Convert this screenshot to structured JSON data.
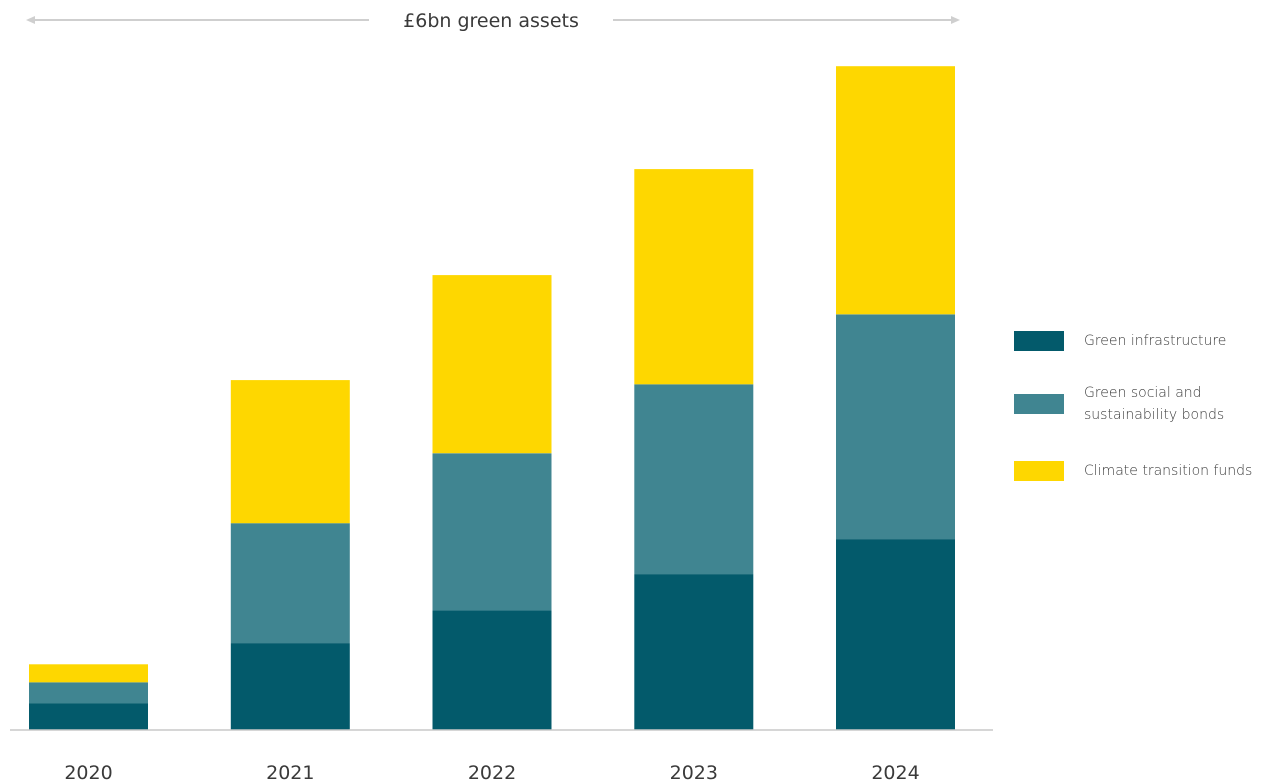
{
  "chart_data": {
    "type": "bar",
    "stacked": true,
    "title": "",
    "xlabel": "",
    "ylabel": "",
    "categories": [
      "2020",
      "2021",
      "2022",
      "2023",
      "2024"
    ],
    "series": [
      {
        "name": "Green infrastructure",
        "color": "#035a6b",
        "values": [
          0.25,
          0.82,
          1.13,
          1.47,
          1.8
        ]
      },
      {
        "name": "Green social and sustainability bonds",
        "color": "#408591",
        "values": [
          0.2,
          1.13,
          1.48,
          1.79,
          2.12
        ]
      },
      {
        "name": "Climate transition funds",
        "color": "#fed700",
        "values": [
          0.17,
          1.35,
          1.68,
          2.03,
          2.34
        ]
      }
    ],
    "ylim": [
      0,
      6.3
    ],
    "grid": false,
    "legend_position": "right",
    "annotation": {
      "text": "£6bn green assets",
      "arrow_color": "#cfcfcf"
    },
    "axis_color": "#c8c8c8"
  }
}
